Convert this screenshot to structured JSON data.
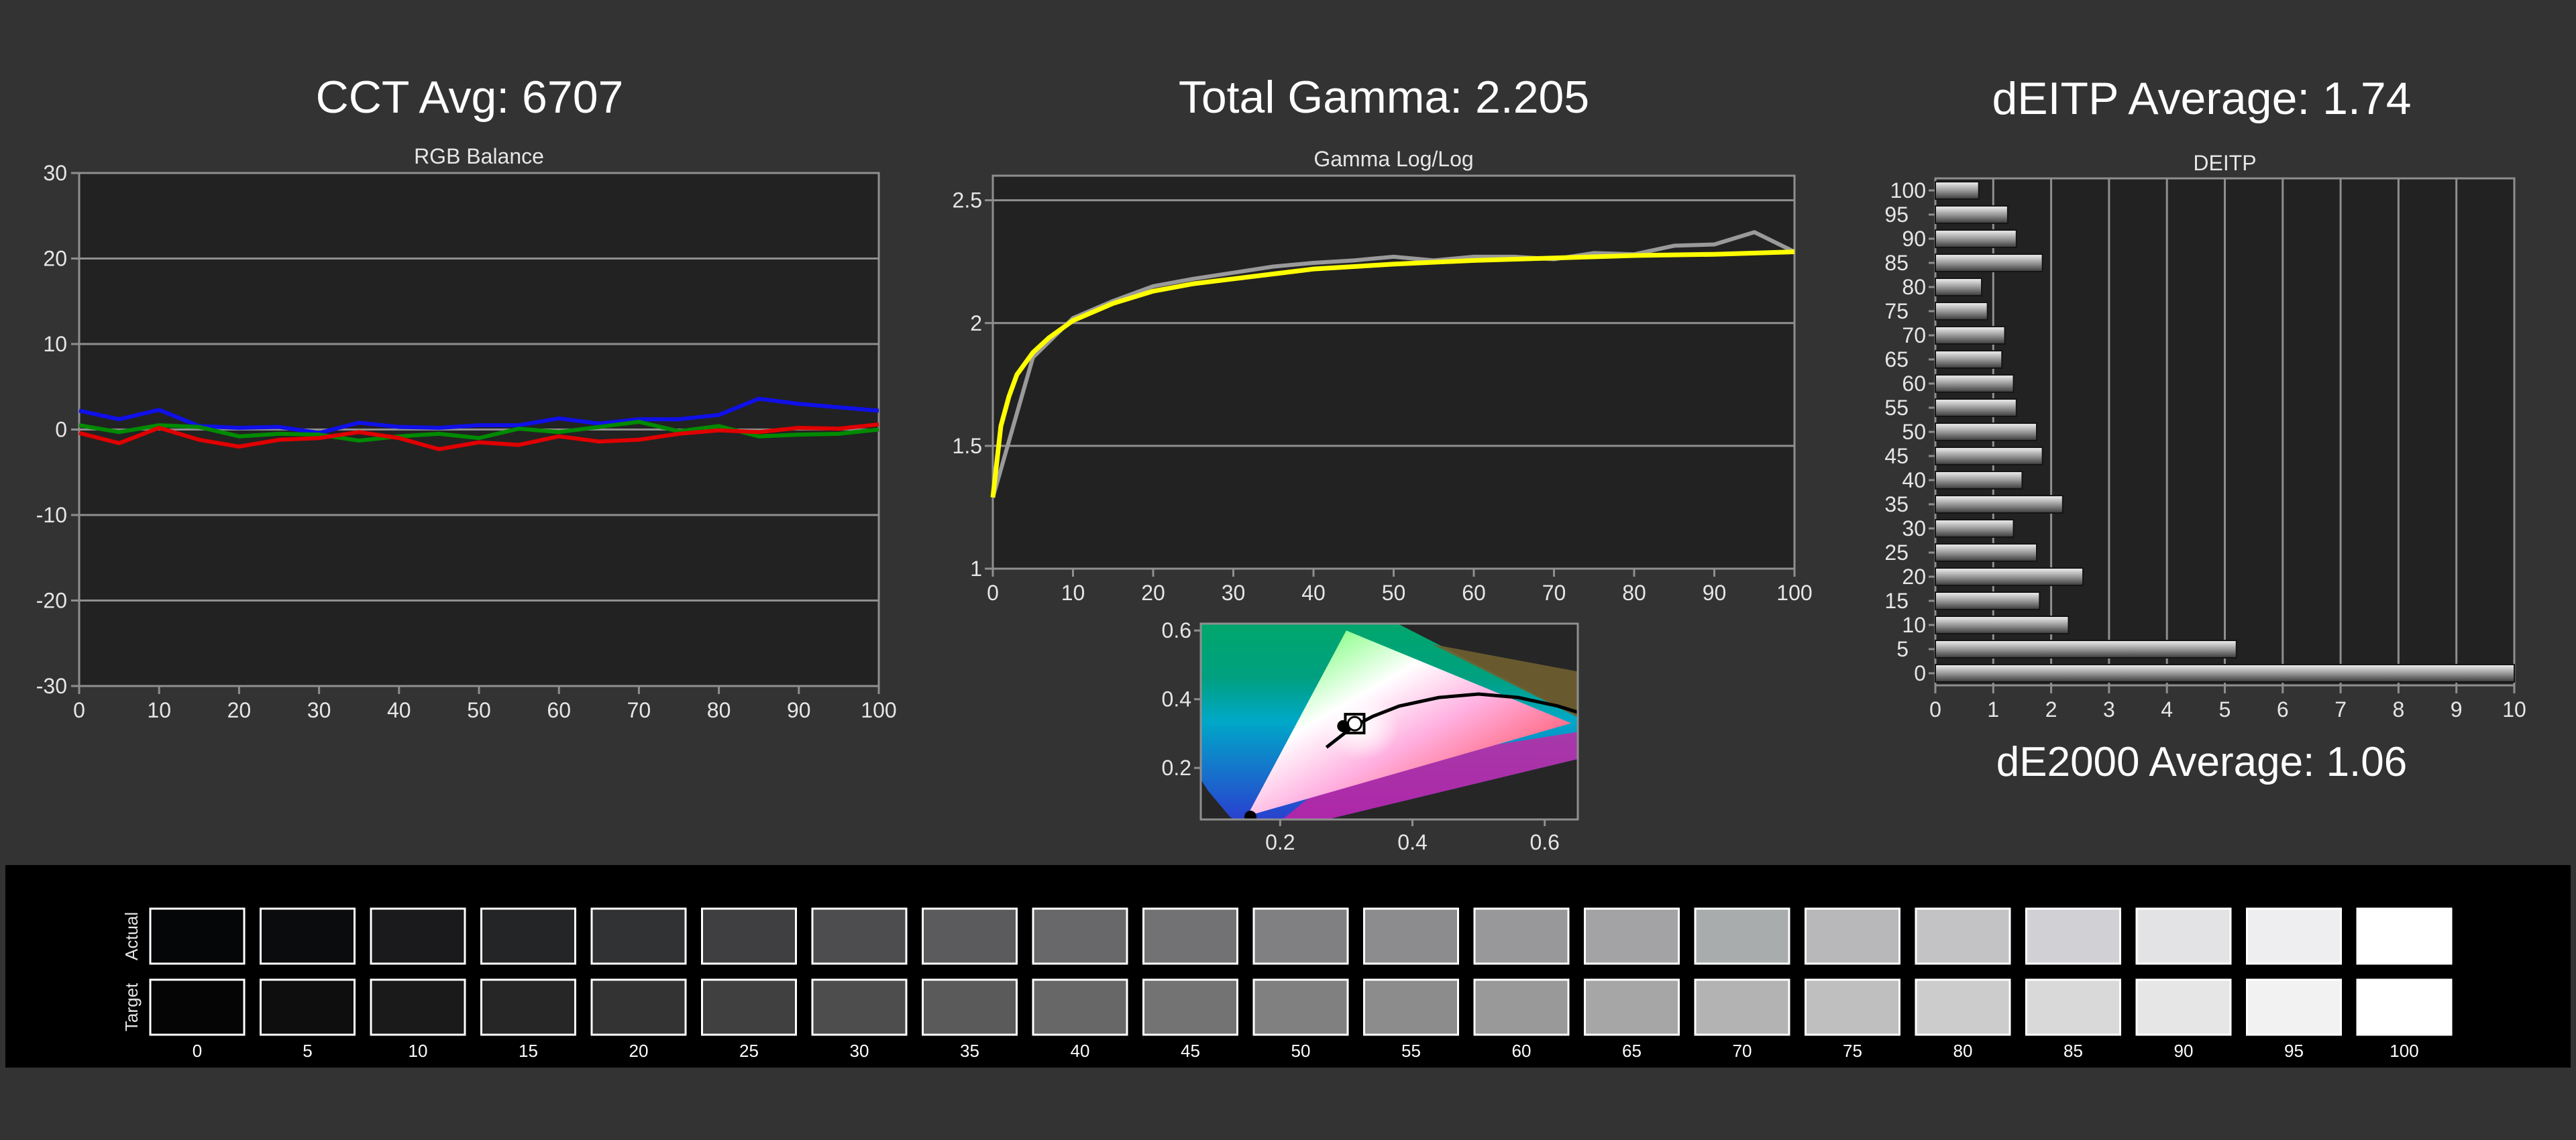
{
  "titles": {
    "cct": "CCT Avg: 6707",
    "gamma": "Total Gamma: 2.205",
    "deitp": "dEITP Average: 1.74",
    "de2000": "dE2000 Average: 1.06"
  },
  "colors": {
    "background": "#333333",
    "plot_bg": "#222222",
    "grid": "#8f8f8f",
    "axis_text": "#e6e6e6",
    "red": "#e00000",
    "green": "#008a00",
    "blue": "#1010e8",
    "gamma_target": "#ffff00",
    "gamma_measured": "#9a9a9a",
    "swatch_border": "#ffffff"
  },
  "chart_data": [
    {
      "id": "rgb-balance",
      "type": "line",
      "title": "RGB Balance",
      "xlim": [
        0,
        100
      ],
      "ylim": [
        -30,
        30
      ],
      "xticks": [
        0,
        10,
        20,
        30,
        40,
        50,
        60,
        70,
        80,
        90,
        100
      ],
      "yticks": [
        30,
        20,
        10,
        0,
        -10,
        -20,
        -30
      ],
      "x": [
        0,
        5,
        10,
        15,
        20,
        25,
        30,
        35,
        40,
        45,
        50,
        55,
        60,
        65,
        70,
        75,
        80,
        85,
        90,
        95,
        100
      ],
      "series": [
        {
          "color": "blue",
          "values": [
            2.2,
            1.2,
            2.3,
            0.4,
            0.2,
            0.3,
            -0.4,
            0.8,
            0.3,
            0.2,
            0.5,
            0.5,
            1.3,
            0.7,
            1.2,
            1.2,
            1.7,
            3.6,
            3.0,
            2.6,
            2.2
          ]
        },
        {
          "color": "green",
          "values": [
            0.5,
            -0.3,
            0.5,
            0.3,
            -0.8,
            -0.5,
            -0.6,
            -1.3,
            -0.8,
            -0.5,
            -1.0,
            0.1,
            -0.3,
            0.3,
            0.9,
            -0.2,
            0.4,
            -0.8,
            -0.6,
            -0.5,
            0.0
          ]
        },
        {
          "color": "red",
          "values": [
            -0.4,
            -1.6,
            0.2,
            -1.2,
            -2.0,
            -1.2,
            -1.0,
            -0.3,
            -1.0,
            -2.3,
            -1.5,
            -1.8,
            -0.8,
            -1.4,
            -1.2,
            -0.5,
            -0.1,
            -0.3,
            0.2,
            0.1,
            0.6
          ]
        }
      ]
    },
    {
      "id": "gamma-loglog",
      "type": "line",
      "title": "Gamma Log/Log",
      "xlim": [
        0,
        100
      ],
      "ylim": [
        1,
        2.6
      ],
      "xticks": [
        0,
        10,
        20,
        30,
        40,
        50,
        60,
        70,
        80,
        90,
        100
      ],
      "yticks": [
        2.5,
        2,
        1.5,
        1
      ],
      "yticklabels": [
        "2.5",
        "2",
        "1.5",
        "1"
      ],
      "target_x": [
        0,
        1,
        2,
        3,
        5,
        7,
        10,
        15,
        20,
        25,
        30,
        40,
        50,
        60,
        70,
        80,
        90,
        100
      ],
      "target_y": [
        1.29,
        1.58,
        1.7,
        1.79,
        1.88,
        1.94,
        2.01,
        2.08,
        2.13,
        2.16,
        2.18,
        2.22,
        2.24,
        2.255,
        2.265,
        2.275,
        2.28,
        2.29
      ],
      "measured_x": [
        0,
        5,
        10,
        15,
        20,
        25,
        30,
        35,
        40,
        45,
        50,
        55,
        60,
        65,
        70,
        75,
        80,
        85,
        90,
        95,
        100
      ],
      "measured_y": [
        1.29,
        1.86,
        2.02,
        2.09,
        2.15,
        2.18,
        2.205,
        2.23,
        2.245,
        2.255,
        2.27,
        2.255,
        2.27,
        2.27,
        2.26,
        2.285,
        2.28,
        2.315,
        2.32,
        2.37,
        2.29
      ]
    },
    {
      "id": "cie-diagram",
      "type": "scatter",
      "xlim": [
        0.08,
        0.65
      ],
      "ylim": [
        0.05,
        0.62
      ],
      "xticks": [
        0.2,
        0.4,
        0.6
      ],
      "yticks": [
        0.2,
        0.4,
        0.6
      ],
      "xticklabels": [
        "0.2",
        "0.4",
        "0.6"
      ],
      "yticklabels": [
        "0.2",
        "0.4",
        "0.6"
      ],
      "gamut": {
        "red": [
          0.64,
          0.33
        ],
        "green": [
          0.3,
          0.6
        ],
        "blue": [
          0.15,
          0.06
        ]
      },
      "white_target": [
        0.3127,
        0.329
      ],
      "white_measured": [
        0.3075,
        0.3295
      ]
    },
    {
      "id": "deitp-bars",
      "type": "bar",
      "orientation": "horizontal",
      "title": "DEITP",
      "xlim": [
        0,
        10
      ],
      "xticks": [
        0,
        1,
        2,
        3,
        4,
        5,
        6,
        7,
        8,
        9,
        10
      ],
      "categories": [
        0,
        5,
        10,
        15,
        20,
        25,
        30,
        35,
        40,
        45,
        50,
        55,
        60,
        65,
        70,
        75,
        80,
        85,
        90,
        95,
        100
      ],
      "yticklabels": [
        "0",
        "5",
        "10",
        "15",
        "20",
        "25",
        "30",
        "35",
        "40",
        "45",
        "50",
        "55",
        "60",
        "65",
        "70",
        "75",
        "80",
        "85",
        "90",
        "95",
        "100"
      ],
      "values": [
        10.0,
        5.2,
        2.3,
        1.8,
        2.55,
        1.75,
        1.35,
        2.2,
        1.5,
        1.85,
        1.75,
        1.4,
        1.35,
        1.15,
        1.2,
        0.9,
        0.8,
        1.85,
        1.4,
        1.25,
        0.75
      ]
    }
  ],
  "swatches": {
    "row_labels": {
      "actual": "Actual",
      "target": "Target"
    },
    "labels": [
      "0",
      "5",
      "10",
      "15",
      "20",
      "25",
      "30",
      "35",
      "40",
      "45",
      "50",
      "55",
      "60",
      "65",
      "70",
      "75",
      "80",
      "85",
      "90",
      "95",
      "100"
    ],
    "actual": [
      "#050608",
      "#0b0c0e",
      "#1a1a1c",
      "#242526",
      "#313234",
      "#3f3f41",
      "#4d4d4f",
      "#5b5b5d",
      "#68686a",
      "#727274",
      "#808082",
      "#8c8c8e",
      "#98989a",
      "#a3a3a5",
      "#a9acad",
      "#b8b8ba",
      "#c3c3c5",
      "#d1d1d5",
      "#e3e3e5",
      "#eeeef0",
      "#ffffff"
    ],
    "target": [
      "#050505",
      "#0e0e0e",
      "#1a1a1a",
      "#262626",
      "#333333",
      "#404040",
      "#4d4d4d",
      "#5a5a5a",
      "#676767",
      "#737373",
      "#808080",
      "#8c8c8c",
      "#999999",
      "#a6a6a6",
      "#b3b3b3",
      "#bfbfbf",
      "#cccccc",
      "#d9d9d9",
      "#e6e6e6",
      "#f2f2f2",
      "#ffffff"
    ]
  }
}
